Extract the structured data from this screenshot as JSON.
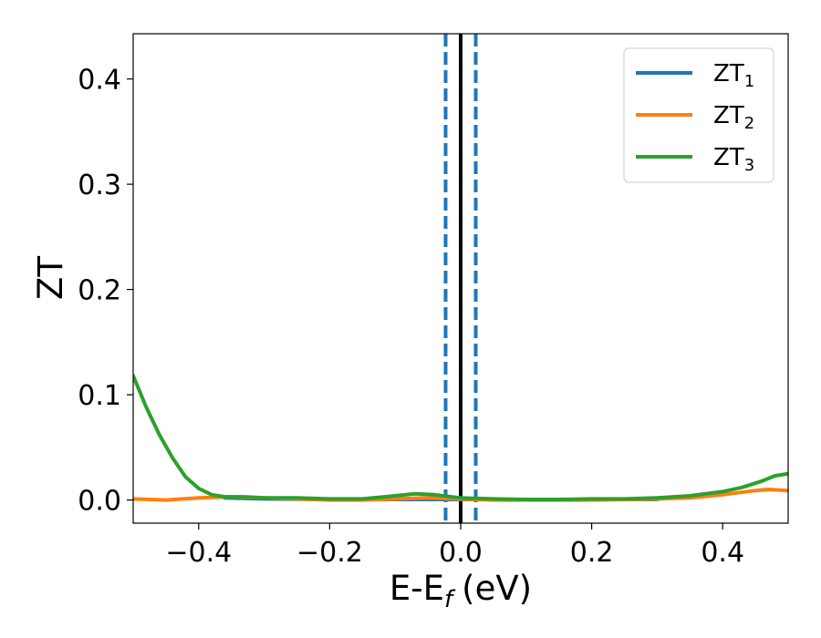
{
  "chart_data": {
    "type": "line",
    "title": "",
    "xlabel": "E-E",
    "xlabel_subscript": "f",
    "xlabel_unit": "(eV)",
    "ylabel": "ZT",
    "xlim": [
      -0.5,
      0.5
    ],
    "ylim": [
      -0.022,
      0.443
    ],
    "xticks": [
      -0.4,
      -0.2,
      0.0,
      0.2,
      0.4
    ],
    "xtick_labels": [
      "−0.4",
      "−0.2",
      "0.0",
      "0.2",
      "0.4"
    ],
    "yticks": [
      0.0,
      0.1,
      0.2,
      0.3,
      0.4
    ],
    "ytick_labels": [
      "0.0",
      "0.1",
      "0.2",
      "0.3",
      "0.4"
    ],
    "grid": false,
    "legend_position": "top-right",
    "vertical_lines": [
      {
        "x": 0.0,
        "style": "solid",
        "color": "#000000"
      },
      {
        "x": -0.023,
        "style": "dashed",
        "color": "#1f77b4"
      },
      {
        "x": 0.023,
        "style": "dashed",
        "color": "#1f77b4"
      }
    ],
    "series": [
      {
        "name": "ZT",
        "name_subscript": "1",
        "color": "#1f77b4",
        "x": [
          -0.36,
          -0.3,
          -0.2,
          -0.1,
          0.0,
          0.1,
          0.2,
          0.3
        ],
        "y": [
          0.002,
          0.001,
          0.0005,
          0.0005,
          0.0005,
          0.0005,
          0.0005,
          0.0005
        ]
      },
      {
        "name": "ZT",
        "name_subscript": "2",
        "color": "#ff7f0e",
        "x": [
          -0.5,
          -0.45,
          -0.4,
          -0.35,
          -0.3,
          -0.25,
          -0.2,
          -0.15,
          -0.1,
          -0.05,
          0.0,
          0.05,
          0.1,
          0.15,
          0.2,
          0.25,
          0.3,
          0.35,
          0.4,
          0.45,
          0.47,
          0.5
        ],
        "y": [
          0.001,
          0.0,
          0.002,
          0.003,
          0.002,
          0.001,
          0.0,
          0.0,
          0.001,
          0.002,
          0.001,
          0.0,
          0.0,
          0.0,
          0.0,
          0.0005,
          0.001,
          0.002,
          0.005,
          0.009,
          0.01,
          0.009
        ]
      },
      {
        "name": "ZT",
        "name_subscript": "3",
        "color": "#2ca02c",
        "x": [
          -0.5,
          -0.48,
          -0.46,
          -0.44,
          -0.42,
          -0.4,
          -0.38,
          -0.36,
          -0.33,
          -0.3,
          -0.25,
          -0.2,
          -0.15,
          -0.1,
          -0.07,
          -0.04,
          0.0,
          0.05,
          0.1,
          0.15,
          0.2,
          0.25,
          0.3,
          0.35,
          0.4,
          0.43,
          0.46,
          0.48,
          0.5
        ],
        "y": [
          0.118,
          0.088,
          0.062,
          0.04,
          0.022,
          0.011,
          0.005,
          0.003,
          0.003,
          0.002,
          0.002,
          0.001,
          0.001,
          0.004,
          0.006,
          0.005,
          0.002,
          0.001,
          0.0005,
          0.0005,
          0.001,
          0.001,
          0.002,
          0.004,
          0.008,
          0.012,
          0.018,
          0.023,
          0.025
        ]
      }
    ]
  }
}
